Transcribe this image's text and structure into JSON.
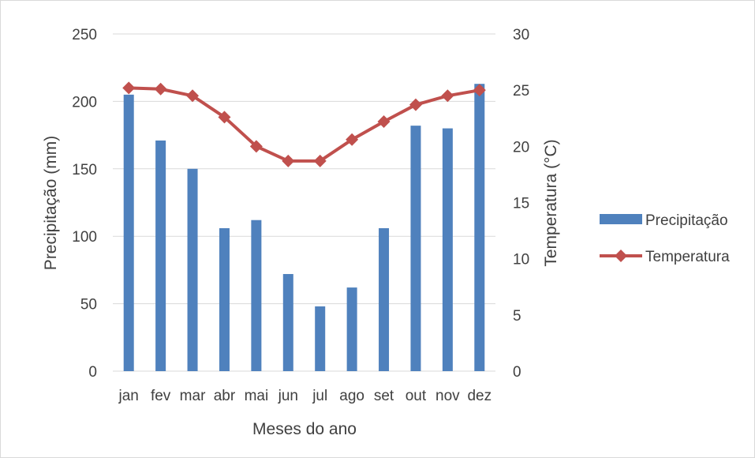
{
  "chart_data": {
    "type": "bar+line",
    "categories": [
      "jan",
      "fev",
      "mar",
      "abr",
      "mai",
      "jun",
      "jul",
      "ago",
      "set",
      "out",
      "nov",
      "dez"
    ],
    "series": [
      {
        "name": "Precipitação",
        "type": "bar",
        "axis": "left",
        "color": "#4F81BD",
        "values": [
          205,
          171,
          150,
          106,
          112,
          72,
          48,
          62,
          106,
          182,
          180,
          213
        ]
      },
      {
        "name": "Temperatura",
        "type": "line",
        "axis": "right",
        "color": "#C0504D",
        "marker": "diamond",
        "values": [
          25.2,
          25.1,
          24.5,
          22.6,
          20.0,
          18.7,
          18.7,
          20.6,
          22.2,
          23.7,
          24.5,
          25.0
        ]
      }
    ],
    "title": "",
    "xlabel": "Meses do ano",
    "ylabel": "Precipitação (mm)",
    "y2label": "Temperatura (°C)",
    "ylim": [
      0,
      250
    ],
    "y2lim": [
      0,
      30
    ],
    "yticks": [
      "0",
      "50",
      "100",
      "150",
      "200",
      "250"
    ],
    "y2ticks": [
      "0",
      "5",
      "10",
      "15",
      "20",
      "25",
      "30"
    ],
    "grid": true,
    "legend": "right"
  }
}
